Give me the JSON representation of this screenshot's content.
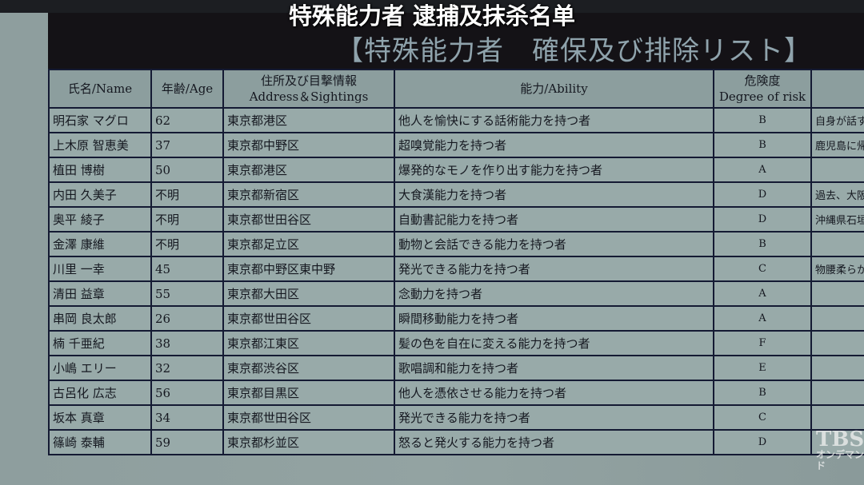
{
  "subtitle": "特殊能力者 逮捕及抹杀名单",
  "document_title": "【特殊能力者　確保及び排除リスト】",
  "columns": {
    "name": "氏名/Name",
    "age": "年齢/Age",
    "address_jp": "住所及び目撃情報",
    "address_en": "Address＆Sightings",
    "ability": "能力/Ability",
    "risk_jp": "危険度",
    "risk_en": "Degree of risk",
    "notes": ""
  },
  "rows": [
    {
      "name": "明石家 マグロ",
      "age": "62",
      "address": "東京都港区",
      "ability": "他人を愉快にする話術能力を持つ者",
      "risk": "B",
      "notes": "自身が話す"
    },
    {
      "name": "上木原 智恵美",
      "age": "37",
      "address": "東京都中野区",
      "ability": "超嗅覚能力を持つ者",
      "risk": "B",
      "notes": "鹿児島に帰"
    },
    {
      "name": "植田 博樹",
      "age": "50",
      "address": "東京都港区",
      "ability": "爆発的なモノを作り出す能力を持つ者",
      "risk": "A",
      "notes": ""
    },
    {
      "name": "内田 久美子",
      "age": "不明",
      "address": "東京都新宿区",
      "ability": "大食漢能力を持つ者",
      "risk": "D",
      "notes": "過去、大阪"
    },
    {
      "name": "奥平 綾子",
      "age": "不明",
      "address": "東京都世田谷区",
      "ability": "自動書記能力を持つ者",
      "risk": "D",
      "notes": "沖縄県石垣"
    },
    {
      "name": "金澤 康維",
      "age": "不明",
      "address": "東京都足立区",
      "ability": "動物と会話できる能力を持つ者",
      "risk": "B",
      "notes": ""
    },
    {
      "name": "川里 一幸",
      "age": "45",
      "address": "東京都中野区東中野",
      "ability": "発光できる能力を持つ者",
      "risk": "C",
      "notes": "物腰柔らか"
    },
    {
      "name": "清田 益章",
      "age": "55",
      "address": "東京都大田区",
      "ability": "念動力を持つ者",
      "risk": "A",
      "notes": ""
    },
    {
      "name": "串岡 良太郎",
      "age": "26",
      "address": "東京都世田谷区",
      "ability": "瞬間移動能力を持つ者",
      "risk": "A",
      "notes": ""
    },
    {
      "name": "楠 千亜紀",
      "age": "38",
      "address": "東京都江東区",
      "ability": "髪の色を自在に変える能力を持つ者",
      "risk": "F",
      "notes": ""
    },
    {
      "name": "小嶋 エリー",
      "age": "32",
      "address": "東京都渋谷区",
      "ability": "歌唱調和能力を持つ者",
      "risk": "E",
      "notes": ""
    },
    {
      "name": "古呂化 広志",
      "age": "56",
      "address": "東京都目黒区",
      "ability": "他人を憑依させる能力を持つ者",
      "risk": "B",
      "notes": ""
    },
    {
      "name": "坂本 真章",
      "age": "34",
      "address": "東京都世田谷区",
      "ability": "発光できる能力を持つ者",
      "risk": "C",
      "notes": ""
    },
    {
      "name": "篠崎 泰輔",
      "age": "59",
      "address": "東京都杉並区",
      "ability": "怒ると発火する能力を持つ者",
      "risk": "D",
      "notes": ""
    }
  ],
  "watermark": {
    "logo": "TBS",
    "sub": "オンデマンド"
  }
}
